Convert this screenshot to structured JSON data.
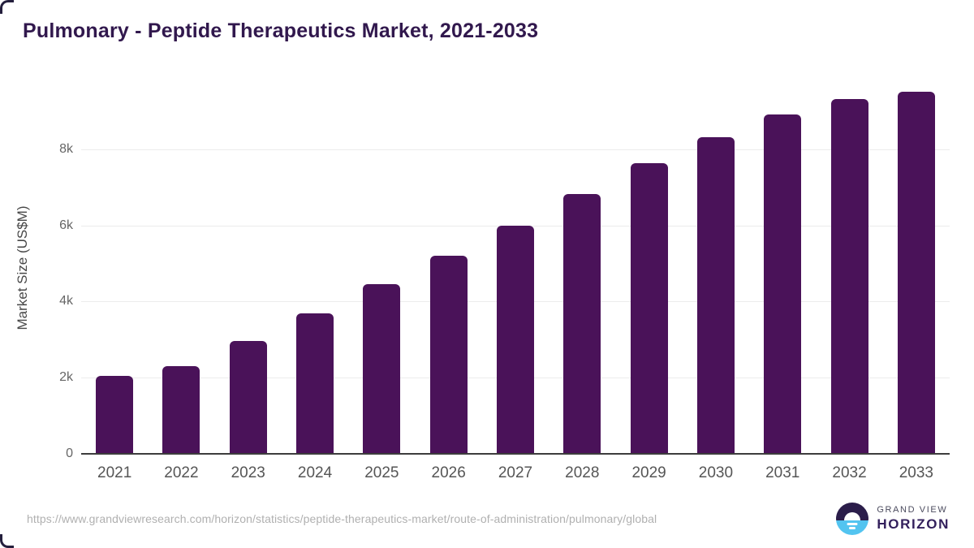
{
  "chart_data": {
    "type": "bar",
    "title": "Pulmonary - Peptide Therapeutics Market, 2021-2033",
    "categories": [
      "2021",
      "2022",
      "2023",
      "2024",
      "2025",
      "2026",
      "2027",
      "2028",
      "2029",
      "2030",
      "2031",
      "2032",
      "2033"
    ],
    "values": [
      2030,
      2300,
      2950,
      3690,
      4450,
      5200,
      6000,
      6830,
      7640,
      8330,
      8930,
      9340,
      9530
    ],
    "unit": "US$M",
    "xlabel": "",
    "ylabel": "Market Size (US$M)",
    "ylim": [
      0,
      9800
    ],
    "yticks": {
      "values": [
        0,
        2000,
        4000,
        6000,
        8000
      ],
      "labels": [
        "0",
        "2k",
        "4k",
        "6k",
        "8k"
      ]
    },
    "grid": "horizontal-only",
    "legend": "none",
    "bar_color": "#4a1259"
  },
  "colors": {
    "bar": "#4a1259",
    "title": "#31184d",
    "gridline": "#ececec",
    "axis_line": "#3d3d3d",
    "tick_label": "#666666",
    "x_label": "#555555",
    "url_text": "#b0b0b0",
    "logo_dark_purple": "#2b1d4a",
    "logo_light_blue": "#53c4f0",
    "logo_horizon_text": "#33205c"
  },
  "footer": {
    "source_url": "https://www.grandviewresearch.com/horizon/statistics/peptide-therapeutics-market/route-of-administration/pulmonary/global",
    "logo": {
      "brand_line1": "GRAND VIEW",
      "brand_line2": "HORIZON"
    }
  }
}
